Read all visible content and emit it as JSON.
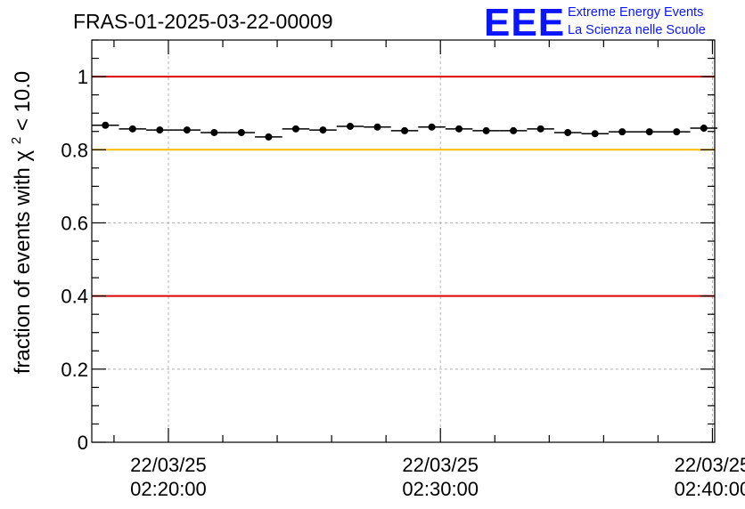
{
  "chart_data": {
    "type": "scatter",
    "title": "FRAS-01-2025-03-22-00009",
    "ylabel": "fraction of events with",
    "ylabel_symbol": "χ",
    "ylabel_superscript": "2",
    "ylabel_tail": " < 10.0",
    "ylim": [
      0,
      1.1
    ],
    "yticks": [
      0,
      0.2,
      0.4,
      0.6,
      0.8,
      1
    ],
    "ytick_labels": [
      "0",
      "0.2",
      "0.4",
      "0.6",
      "0.8",
      "1"
    ],
    "xlim": [
      "22/03/25 02:17:11",
      "22/03/25 02:40:05"
    ],
    "xticks": [
      "22/03/25 02:20:00",
      "22/03/25 02:30:00",
      "22/03/25 02:40:00"
    ],
    "xtick_labels": [
      {
        "date": "22/03/25",
        "time": "02:20:00"
      },
      {
        "date": "22/03/25",
        "time": "02:30:00"
      },
      {
        "date": "22/03/25",
        "time": "02:40:00"
      }
    ],
    "grid": true,
    "reference_lines": [
      {
        "y": 1.0,
        "color": "#dd0000"
      },
      {
        "y": 0.8,
        "color": "#ffbf00"
      },
      {
        "y": 0.4,
        "color": "#dd0000"
      }
    ],
    "x_bin_width_seconds": 60,
    "points": [
      {
        "x": "02:17:41",
        "y": 0.867
      },
      {
        "x": "02:18:41",
        "y": 0.857
      },
      {
        "x": "02:19:41",
        "y": 0.854
      },
      {
        "x": "02:20:41",
        "y": 0.854
      },
      {
        "x": "02:21:41",
        "y": 0.847
      },
      {
        "x": "02:22:41",
        "y": 0.847
      },
      {
        "x": "02:23:41",
        "y": 0.835
      },
      {
        "x": "02:24:41",
        "y": 0.857
      },
      {
        "x": "02:25:41",
        "y": 0.854
      },
      {
        "x": "02:26:41",
        "y": 0.864
      },
      {
        "x": "02:27:41",
        "y": 0.862
      },
      {
        "x": "02:28:41",
        "y": 0.852
      },
      {
        "x": "02:29:41",
        "y": 0.862
      },
      {
        "x": "02:30:41",
        "y": 0.857
      },
      {
        "x": "02:31:41",
        "y": 0.852
      },
      {
        "x": "02:32:41",
        "y": 0.852
      },
      {
        "x": "02:33:41",
        "y": 0.857
      },
      {
        "x": "02:34:41",
        "y": 0.847
      },
      {
        "x": "02:35:41",
        "y": 0.844
      },
      {
        "x": "02:36:41",
        "y": 0.849
      },
      {
        "x": "02:37:41",
        "y": 0.849
      },
      {
        "x": "02:38:41",
        "y": 0.849
      },
      {
        "x": "02:39:41",
        "y": 0.859
      }
    ]
  },
  "logo": {
    "mark": "EEE",
    "line1": "Extreme Energy Events",
    "line2": "La Scienza nelle Scuole",
    "color": "#0a14ff"
  },
  "colors": {
    "axis": "#000000",
    "grid": "#b4b4b4",
    "marker": "#000000"
  }
}
